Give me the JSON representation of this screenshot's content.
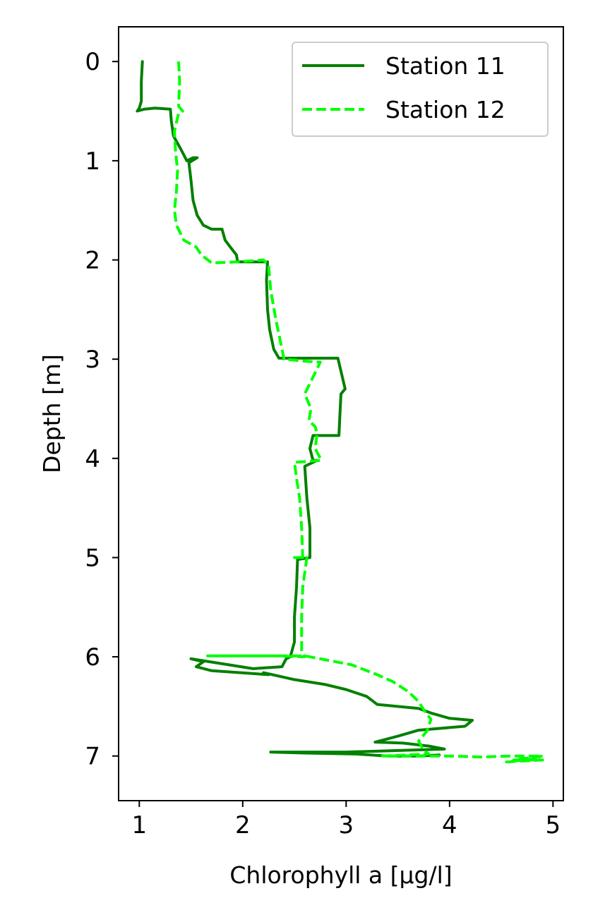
{
  "chart_data": {
    "type": "line",
    "title": "",
    "xlabel": "Chlorophyll a [µg/l]",
    "ylabel": "Depth [m]",
    "xlim": [
      0.8,
      5.1
    ],
    "ylim": [
      7.45,
      -0.35
    ],
    "y_inverted": true,
    "x_ticks": [
      1,
      2,
      3,
      4,
      5
    ],
    "y_ticks": [
      0,
      1,
      2,
      3,
      4,
      5,
      6,
      7
    ],
    "grid": false,
    "legend_position": "top-right",
    "series": [
      {
        "name": "Station 11",
        "color": "#008000",
        "style": "solid",
        "points": [
          [
            1.03,
            0.0
          ],
          [
            1.02,
            0.2
          ],
          [
            1.02,
            0.4
          ],
          [
            1.0,
            0.47
          ],
          [
            0.98,
            0.5
          ],
          [
            1.05,
            0.48
          ],
          [
            1.15,
            0.47
          ],
          [
            1.3,
            0.48
          ],
          [
            1.31,
            0.6
          ],
          [
            1.33,
            0.75
          ],
          [
            1.4,
            0.88
          ],
          [
            1.46,
            1.0
          ],
          [
            1.52,
            0.97
          ],
          [
            1.56,
            0.97
          ],
          [
            1.48,
            1.02
          ],
          [
            1.5,
            1.2
          ],
          [
            1.52,
            1.4
          ],
          [
            1.56,
            1.55
          ],
          [
            1.62,
            1.65
          ],
          [
            1.7,
            1.69
          ],
          [
            1.8,
            1.69
          ],
          [
            1.83,
            1.8
          ],
          [
            1.88,
            1.87
          ],
          [
            1.94,
            1.95
          ],
          [
            1.95,
            2.02
          ],
          [
            2.1,
            2.02
          ],
          [
            2.24,
            2.02
          ],
          [
            2.23,
            2.2
          ],
          [
            2.24,
            2.5
          ],
          [
            2.26,
            2.7
          ],
          [
            2.3,
            2.9
          ],
          [
            2.35,
            2.99
          ],
          [
            2.6,
            2.99
          ],
          [
            2.92,
            2.99
          ],
          [
            2.99,
            3.3
          ],
          [
            2.95,
            3.35
          ],
          [
            2.94,
            3.56
          ],
          [
            2.93,
            3.77
          ],
          [
            2.68,
            3.77
          ],
          [
            2.65,
            3.9
          ],
          [
            2.68,
            4.02
          ],
          [
            2.72,
            4.02
          ],
          [
            2.6,
            4.08
          ],
          [
            2.62,
            4.4
          ],
          [
            2.65,
            4.7
          ],
          [
            2.65,
            5.0
          ],
          [
            2.53,
            5.02
          ],
          [
            2.52,
            5.3
          ],
          [
            2.5,
            5.6
          ],
          [
            2.5,
            5.85
          ],
          [
            2.46,
            6.0
          ],
          [
            2.42,
            6.02
          ],
          [
            2.38,
            6.1
          ],
          [
            2.1,
            6.12
          ],
          [
            1.5,
            6.02
          ],
          [
            1.62,
            6.05
          ],
          [
            1.55,
            6.1
          ],
          [
            1.7,
            6.14
          ],
          [
            2.25,
            6.18
          ],
          [
            2.2,
            6.16
          ],
          [
            2.5,
            6.23
          ],
          [
            2.8,
            6.28
          ],
          [
            3.0,
            6.33
          ],
          [
            3.2,
            6.4
          ],
          [
            3.3,
            6.48
          ],
          [
            3.7,
            6.52
          ],
          [
            3.83,
            6.57
          ],
          [
            4.0,
            6.62
          ],
          [
            4.22,
            6.64
          ],
          [
            4.15,
            6.7
          ],
          [
            3.7,
            6.74
          ],
          [
            3.5,
            6.8
          ],
          [
            3.28,
            6.86
          ],
          [
            3.55,
            6.87
          ],
          [
            3.8,
            6.9
          ],
          [
            3.95,
            6.93
          ],
          [
            3.0,
            6.96
          ],
          [
            2.7,
            6.96
          ],
          [
            2.27,
            6.96
          ],
          [
            2.6,
            6.97
          ],
          [
            3.1,
            6.98
          ],
          [
            3.4,
            7.0
          ],
          [
            3.7,
            7.0
          ],
          [
            3.9,
            6.99
          ]
        ]
      },
      {
        "name": "Station 12",
        "color": "#00ff00",
        "style": "dashed",
        "points": [
          [
            1.38,
            0.0
          ],
          [
            1.39,
            0.2
          ],
          [
            1.38,
            0.45
          ],
          [
            1.42,
            0.5
          ],
          [
            1.38,
            0.52
          ],
          [
            1.34,
            0.7
          ],
          [
            1.35,
            0.9
          ],
          [
            1.37,
            1.1
          ],
          [
            1.36,
            1.3
          ],
          [
            1.34,
            1.5
          ],
          [
            1.36,
            1.65
          ],
          [
            1.43,
            1.8
          ],
          [
            1.55,
            1.87
          ],
          [
            1.6,
            1.95
          ],
          [
            1.7,
            2.03
          ],
          [
            1.95,
            2.02
          ],
          [
            2.2,
            2.0
          ],
          [
            2.25,
            2.05
          ],
          [
            2.27,
            2.3
          ],
          [
            2.32,
            2.6
          ],
          [
            2.37,
            2.85
          ],
          [
            2.4,
            3.0
          ],
          [
            2.6,
            3.02
          ],
          [
            2.75,
            3.03
          ],
          [
            2.6,
            3.35
          ],
          [
            2.66,
            3.5
          ],
          [
            2.64,
            3.62
          ],
          [
            2.7,
            3.68
          ],
          [
            2.72,
            3.75
          ],
          [
            2.7,
            3.9
          ],
          [
            2.76,
            4.02
          ],
          [
            2.5,
            4.04
          ],
          [
            2.52,
            4.2
          ],
          [
            2.55,
            4.4
          ],
          [
            2.57,
            4.7
          ],
          [
            2.58,
            5.0
          ],
          [
            2.5,
            5.0
          ],
          [
            2.62,
            5.0
          ],
          [
            2.58,
            5.3
          ],
          [
            2.57,
            5.6
          ],
          [
            2.57,
            5.95
          ],
          [
            2.6,
            6.0
          ],
          [
            2.3,
            5.99
          ],
          [
            1.66,
            5.99
          ],
          [
            2.1,
            5.99
          ],
          [
            2.6,
            5.99
          ],
          [
            2.75,
            6.02
          ],
          [
            3.05,
            6.08
          ],
          [
            3.3,
            6.18
          ],
          [
            3.45,
            6.25
          ],
          [
            3.6,
            6.35
          ],
          [
            3.7,
            6.45
          ],
          [
            3.76,
            6.55
          ],
          [
            3.82,
            6.63
          ],
          [
            3.78,
            6.75
          ],
          [
            3.7,
            6.85
          ],
          [
            3.75,
            6.94
          ],
          [
            3.8,
            6.98
          ],
          [
            3.35,
            7.0
          ],
          [
            4.0,
            7.0
          ],
          [
            4.3,
            7.01
          ],
          [
            4.6,
            7.0
          ],
          [
            4.9,
            7.0
          ],
          [
            4.62,
            7.04
          ],
          [
            4.9,
            7.04
          ],
          [
            4.55,
            7.06
          ],
          [
            4.88,
            7.02
          ]
        ]
      }
    ]
  }
}
